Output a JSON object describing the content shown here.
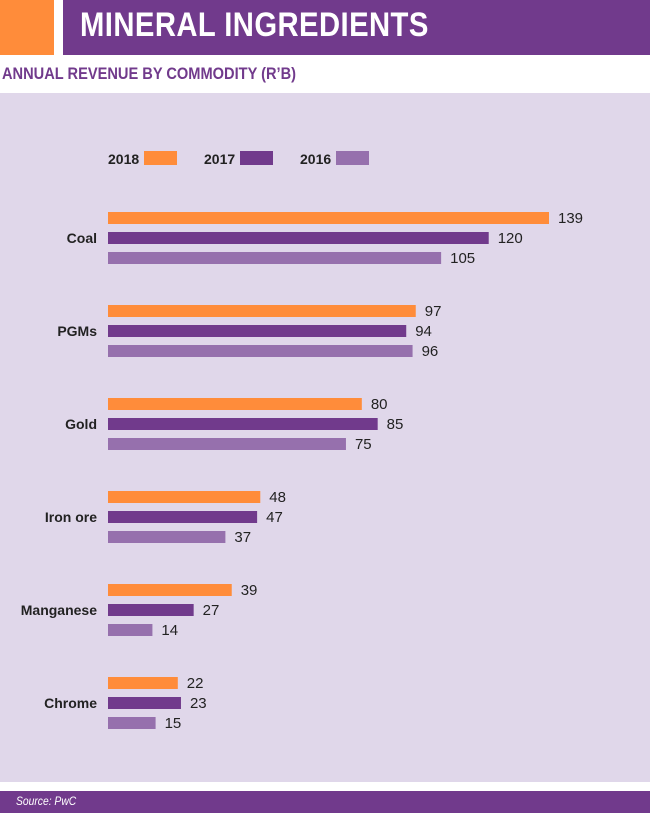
{
  "header": {
    "title": "MINERAL INGREDIENTS"
  },
  "subtitle": "ANNUAL REVENUE BY COMMODITY (R’B)",
  "source": "Source: PwC",
  "colors": {
    "orange": "#ff8c3a",
    "purple": "#713a8c",
    "lavender": "#9670ad",
    "panel": "#e0d7ea"
  },
  "chart_data": {
    "type": "bar",
    "orientation": "horizontal",
    "title": "ANNUAL REVENUE BY COMMODITY (R’B)",
    "categories": [
      "Coal",
      "PGMs",
      "Gold",
      "Iron ore",
      "Manganese",
      "Chrome"
    ],
    "series": [
      {
        "name": "2018",
        "color": "#ff8c3a",
        "values": [
          139,
          97,
          80,
          48,
          39,
          22
        ]
      },
      {
        "name": "2017",
        "color": "#713a8c",
        "values": [
          120,
          94,
          85,
          47,
          27,
          23
        ]
      },
      {
        "name": "2016",
        "color": "#9670ad",
        "values": [
          105,
          96,
          75,
          37,
          14,
          15
        ]
      }
    ],
    "xlim": [
      0,
      139
    ],
    "legend": "top-left",
    "grid": false
  }
}
